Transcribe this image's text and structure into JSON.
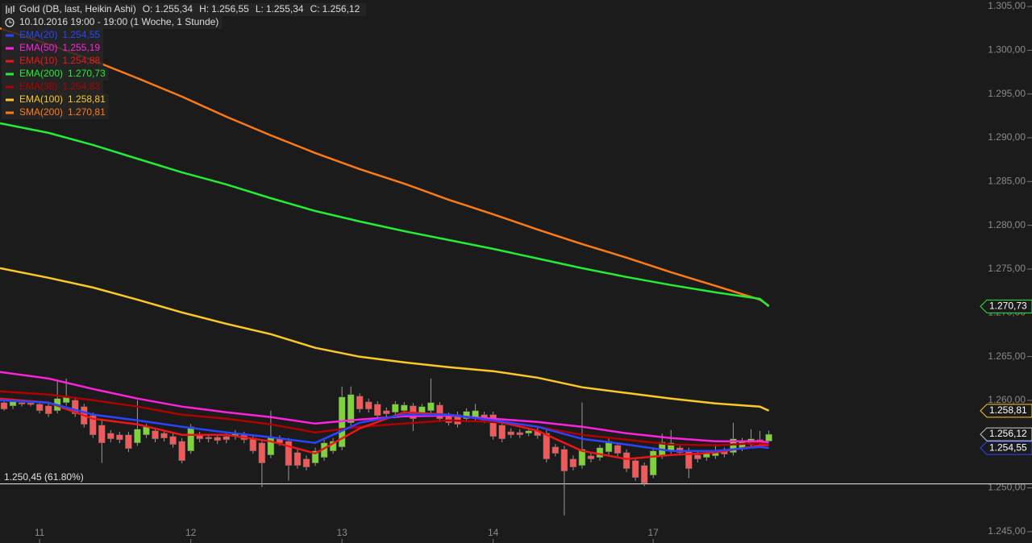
{
  "chart_data": {
    "type": "candlestick",
    "title": "Gold (DB, last, Heikin Ashi)",
    "last_bar_labels": [
      [
        "O:",
        "1.255,34"
      ],
      [
        "H:",
        "1.256,55"
      ],
      [
        "L:",
        "1.255,34"
      ],
      [
        "C:",
        "1.256,12"
      ]
    ],
    "subtitle": "10.10.2016 19:00 - 19:00 (1 Woche, 1 Stunde)",
    "up_color": "#7ed23c",
    "down_color": "#f05a5a",
    "categories": [
      null,
      null,
      null,
      null,
      "11",
      null,
      null,
      null,
      null,
      null,
      null,
      null,
      null,
      null,
      null,
      null,
      null,
      null,
      null,
      null,
      null,
      "12",
      null,
      null,
      null,
      null,
      null,
      null,
      null,
      null,
      null,
      null,
      null,
      null,
      null,
      null,
      null,
      null,
      "13",
      null,
      null,
      null,
      null,
      null,
      null,
      null,
      null,
      null,
      null,
      null,
      null,
      null,
      null,
      null,
      null,
      "14",
      null,
      null,
      null,
      null,
      null,
      null,
      null,
      null,
      null,
      null,
      null,
      null,
      null,
      null,
      null,
      null,
      null,
      "17",
      null,
      null,
      null,
      null,
      null,
      null,
      null,
      null,
      null,
      null,
      null,
      null,
      null
    ],
    "ohlc": [
      [
        1259.74,
        1260.11,
        1258.82,
        1259.0
      ],
      [
        1259.37,
        1260.2,
        1259.0,
        1259.83
      ],
      [
        1259.74,
        1260.0,
        1259.3,
        1259.56
      ],
      [
        1259.7,
        1260.0,
        1259.3,
        1259.5
      ],
      [
        1259.56,
        1259.9,
        1258.5,
        1258.82
      ],
      [
        1259.37,
        1259.7,
        1258.1,
        1258.46
      ],
      [
        1258.82,
        1262.32,
        1258.5,
        1260.2
      ],
      [
        1259.74,
        1262.5,
        1259.4,
        1260.48
      ],
      [
        1260.02,
        1260.4,
        1258.1,
        1258.46
      ],
      [
        1259.28,
        1259.6,
        1256.9,
        1257.26
      ],
      [
        1258.26,
        1258.6,
        1255.7,
        1256.06
      ],
      [
        1257.16,
        1257.9,
        1252.84,
        1255.14
      ],
      [
        1256.24,
        1256.6,
        1255.2,
        1255.6
      ],
      [
        1256.06,
        1256.4,
        1255.1,
        1255.5
      ],
      [
        1256.06,
        1256.4,
        1254.1,
        1254.49
      ],
      [
        1255.14,
        1260.02,
        1254.8,
        1256.7
      ],
      [
        1256.06,
        1257.3,
        1255.7,
        1256.98
      ],
      [
        1256.52,
        1256.9,
        1255.2,
        1255.6
      ],
      [
        1256.24,
        1256.6,
        1255.3,
        1255.69
      ],
      [
        1255.87,
        1256.2,
        1254.6,
        1254.96
      ],
      [
        1255.32,
        1255.7,
        1252.8,
        1253.11
      ],
      [
        1254.22,
        1257.3,
        1253.9,
        1256.98
      ],
      [
        1256.06,
        1256.4,
        1255.2,
        1255.6
      ],
      [
        1255.78,
        1256.1,
        1255.2,
        1255.6
      ],
      [
        1255.78,
        1256.1,
        1255.0,
        1255.41
      ],
      [
        1255.87,
        1256.2,
        1255.1,
        1255.5
      ],
      [
        1255.87,
        1256.6,
        1255.5,
        1256.24
      ],
      [
        1256.06,
        1256.4,
        1255.1,
        1255.5
      ],
      [
        1255.69,
        1256.0,
        1253.9,
        1254.22
      ],
      [
        1255.14,
        1255.5,
        1250.08,
        1252.84
      ],
      [
        1253.76,
        1258.82,
        1253.4,
        1255.78
      ],
      [
        1255.69,
        1256.0,
        1254.8,
        1255.14
      ],
      [
        1255.32,
        1255.7,
        1250.82,
        1252.56
      ],
      [
        1254.03,
        1254.4,
        1252.2,
        1252.56
      ],
      [
        1253.3,
        1253.7,
        1252.0,
        1252.38
      ],
      [
        1252.84,
        1254.6,
        1252.5,
        1254.22
      ],
      [
        1253.48,
        1255.5,
        1253.1,
        1255.14
      ],
      [
        1254.22,
        1255.7,
        1253.9,
        1255.32
      ],
      [
        1254.68,
        1261.58,
        1254.3,
        1260.38
      ],
      [
        1257.44,
        1261.58,
        1257.1,
        1260.66
      ],
      [
        1260.48,
        1260.8,
        1258.6,
        1259.0
      ],
      [
        1259.83,
        1260.2,
        1258.6,
        1259.0
      ],
      [
        1259.56,
        1259.9,
        1257.9,
        1258.26
      ],
      [
        1258.82,
        1259.2,
        1258.1,
        1258.46
      ],
      [
        1258.64,
        1259.9,
        1258.3,
        1259.56
      ],
      [
        1258.82,
        1259.8,
        1258.5,
        1259.46
      ],
      [
        1259.37,
        1259.7,
        1256.5,
        1257.9
      ],
      [
        1258.46,
        1259.6,
        1258.1,
        1259.28
      ],
      [
        1258.82,
        1262.5,
        1258.5,
        1259.74
      ],
      [
        1259.46,
        1259.8,
        1257.5,
        1257.9
      ],
      [
        1258.26,
        1258.6,
        1257.1,
        1257.44
      ],
      [
        1258.36,
        1258.7,
        1256.9,
        1257.26
      ],
      [
        1257.9,
        1259.1,
        1257.5,
        1258.73
      ],
      [
        1258.08,
        1259.6,
        1257.7,
        1258.82
      ],
      [
        1258.36,
        1258.7,
        1257.4,
        1257.72
      ],
      [
        1258.36,
        1258.7,
        1255.5,
        1255.87
      ],
      [
        1257.16,
        1257.5,
        1255.2,
        1255.6
      ],
      [
        1256.42,
        1256.8,
        1255.7,
        1256.06
      ],
      [
        1256.33,
        1256.7,
        1255.7,
        1256.06
      ],
      [
        1256.24,
        1256.9,
        1255.9,
        1256.52
      ],
      [
        1256.52,
        1256.9,
        1255.6,
        1255.96
      ],
      [
        1256.24,
        1256.6,
        1252.9,
        1253.3
      ],
      [
        1254.68,
        1255.0,
        1253.6,
        1253.94
      ],
      [
        1254.4,
        1254.8,
        1246.86,
        1251.92
      ],
      [
        1253.3,
        1253.7,
        1252.0,
        1252.38
      ],
      [
        1252.56,
        1259.74,
        1252.2,
        1254.4
      ],
      [
        1253.66,
        1254.0,
        1252.9,
        1253.3
      ],
      [
        1253.48,
        1254.9,
        1253.1,
        1254.58
      ],
      [
        1254.12,
        1255.7,
        1253.8,
        1255.32
      ],
      [
        1254.86,
        1255.2,
        1253.6,
        1253.94
      ],
      [
        1254.03,
        1254.4,
        1251.8,
        1252.2
      ],
      [
        1253.11,
        1253.5,
        1250.8,
        1251.18
      ],
      [
        1252.56,
        1252.9,
        1250.2,
        1250.54
      ],
      [
        1251.46,
        1254.6,
        1251.1,
        1254.22
      ],
      [
        1253.66,
        1256.2,
        1253.3,
        1255.23
      ],
      [
        1254.22,
        1256.6,
        1253.9,
        1255.14
      ],
      [
        1254.58,
        1254.9,
        1253.7,
        1254.03
      ],
      [
        1254.22,
        1254.6,
        1251.1,
        1252.2
      ],
      [
        1253.76,
        1254.1,
        1252.9,
        1253.3
      ],
      [
        1253.48,
        1254.3,
        1253.1,
        1253.94
      ],
      [
        1253.66,
        1255.0,
        1253.3,
        1254.12
      ],
      [
        1254.22,
        1254.6,
        1253.5,
        1253.85
      ],
      [
        1254.03,
        1257.44,
        1253.7,
        1255.6
      ],
      [
        1254.58,
        1255.7,
        1254.2,
        1255.32
      ],
      [
        1254.96,
        1256.7,
        1254.6,
        1255.6
      ],
      [
        1255.5,
        1256.5,
        1254.8,
        1255.14
      ],
      [
        1255.34,
        1256.55,
        1255.34,
        1256.12
      ]
    ],
    "series": [
      {
        "name": "EMA(20)",
        "color": "#2a44ff",
        "last_label": "1.254,55",
        "price_tag": true,
        "x": [
          0,
          5,
          10,
          15,
          20,
          25,
          30,
          35,
          40,
          45,
          50,
          55,
          60,
          65,
          70,
          75,
          80,
          85,
          86
        ],
        "values": [
          1260.02,
          1259.74,
          1258.36,
          1257.72,
          1256.98,
          1256.33,
          1255.78,
          1255.14,
          1257.44,
          1258.36,
          1258.36,
          1257.72,
          1256.98,
          1255.6,
          1254.96,
          1254.22,
          1254.22,
          1254.68,
          1254.55
        ]
      },
      {
        "name": "EMA(50)",
        "color": "#ff22dd",
        "last_label": "1.255,19",
        "price_tag": false,
        "x": [
          0,
          5,
          10,
          15,
          20,
          25,
          30,
          35,
          40,
          45,
          50,
          55,
          60,
          65,
          70,
          75,
          80,
          85,
          86
        ],
        "values": [
          1263.23,
          1262.5,
          1261.3,
          1260.2,
          1259.28,
          1258.64,
          1258.08,
          1257.34,
          1257.8,
          1258.17,
          1258.26,
          1257.9,
          1257.53,
          1256.98,
          1256.24,
          1255.69,
          1255.32,
          1255.32,
          1255.19
        ]
      },
      {
        "name": "EMA(10)",
        "color": "#ee1515",
        "last_label": "1.254,88",
        "price_tag": false,
        "x": [
          0,
          5,
          10,
          15,
          20,
          25,
          30,
          35,
          40,
          45,
          50,
          55,
          60,
          65,
          70,
          75,
          80,
          85,
          86
        ],
        "values": [
          1260.2,
          1259.74,
          1257.9,
          1257.26,
          1256.06,
          1256.06,
          1255.32,
          1253.94,
          1256.79,
          1258.64,
          1258.36,
          1257.72,
          1256.52,
          1254.22,
          1253.3,
          1253.76,
          1254.03,
          1254.86,
          1254.88
        ]
      },
      {
        "name": "EMA(200)",
        "color": "#22ee33",
        "last_label": "1.270,73",
        "price_tag": true,
        "x": [
          0,
          5,
          10,
          15,
          20,
          25,
          30,
          35,
          40,
          45,
          50,
          55,
          60,
          65,
          70,
          75,
          80,
          85,
          86
        ],
        "values": [
          1291.66,
          1290.56,
          1289.18,
          1287.61,
          1286.05,
          1284.67,
          1283.1,
          1281.63,
          1280.44,
          1279.33,
          1278.32,
          1277.31,
          1276.2,
          1275.1,
          1274.09,
          1273.17,
          1272.34,
          1271.6,
          1270.73
        ]
      },
      {
        "name": "EMA(38)",
        "color": "#b00000",
        "last_label": "1.254,83",
        "price_tag": false,
        "x": [
          0,
          5,
          10,
          15,
          20,
          25,
          30,
          35,
          40,
          45,
          50,
          55,
          60,
          65,
          70,
          75,
          80,
          85,
          86
        ],
        "values": [
          1261.02,
          1260.66,
          1260.02,
          1259.28,
          1258.36,
          1257.9,
          1257.26,
          1256.33,
          1256.98,
          1257.34,
          1257.72,
          1257.53,
          1256.98,
          1256.06,
          1255.5,
          1254.96,
          1254.86,
          1255.14,
          1254.83
        ]
      },
      {
        "name": "EMA(100)",
        "color": "#ffc825",
        "last_label": "1.258,81",
        "price_tag": true,
        "x": [
          0,
          5,
          10,
          15,
          20,
          25,
          30,
          35,
          40,
          45,
          50,
          55,
          60,
          65,
          70,
          75,
          80,
          85,
          86
        ],
        "values": [
          1275.1,
          1274.0,
          1272.89,
          1271.51,
          1270.04,
          1268.75,
          1267.56,
          1266.0,
          1264.98,
          1264.34,
          1263.79,
          1263.33,
          1262.59,
          1261.49,
          1260.84,
          1260.2,
          1259.65,
          1259.28,
          1258.81
        ]
      },
      {
        "name": "SMA(200)",
        "color": "#ff7a15",
        "last_label": "1.270,81",
        "price_tag": false,
        "x": [
          0,
          5,
          10,
          15,
          20,
          25,
          30,
          35,
          40,
          45,
          50,
          55,
          60,
          65,
          70,
          75,
          80,
          85,
          86
        ],
        "values": [
          1302.52,
          1300.68,
          1298.84,
          1296.81,
          1294.7,
          1292.4,
          1290.28,
          1288.26,
          1286.42,
          1284.76,
          1282.92,
          1281.26,
          1279.52,
          1277.86,
          1276.3,
          1274.64,
          1273.08,
          1271.51,
          1270.81
        ]
      }
    ],
    "level": {
      "value": 1250.45,
      "label": "1.250,45 (61.80%)"
    },
    "ylim": [
      1243.7,
      1305.74
    ],
    "yticks": [
      {
        "value": 1245,
        "label": "1.245,00"
      },
      {
        "value": 1250,
        "label": "1.250,00"
      },
      {
        "value": 1255,
        "label": "1.255,00"
      },
      {
        "value": 1260,
        "label": "1.260,00"
      },
      {
        "value": 1265,
        "label": "1.265,00"
      },
      {
        "value": 1270,
        "label": "1.270,00"
      },
      {
        "value": 1275,
        "label": "1.275,00"
      },
      {
        "value": 1280,
        "label": "1.280,00"
      },
      {
        "value": 1285,
        "label": "1.285,00"
      },
      {
        "value": 1290,
        "label": "1.290,00"
      },
      {
        "value": 1295,
        "label": "1.295,00"
      },
      {
        "value": 1300,
        "label": "1.300,00"
      },
      {
        "value": 1305,
        "label": "1.305,00"
      }
    ]
  }
}
